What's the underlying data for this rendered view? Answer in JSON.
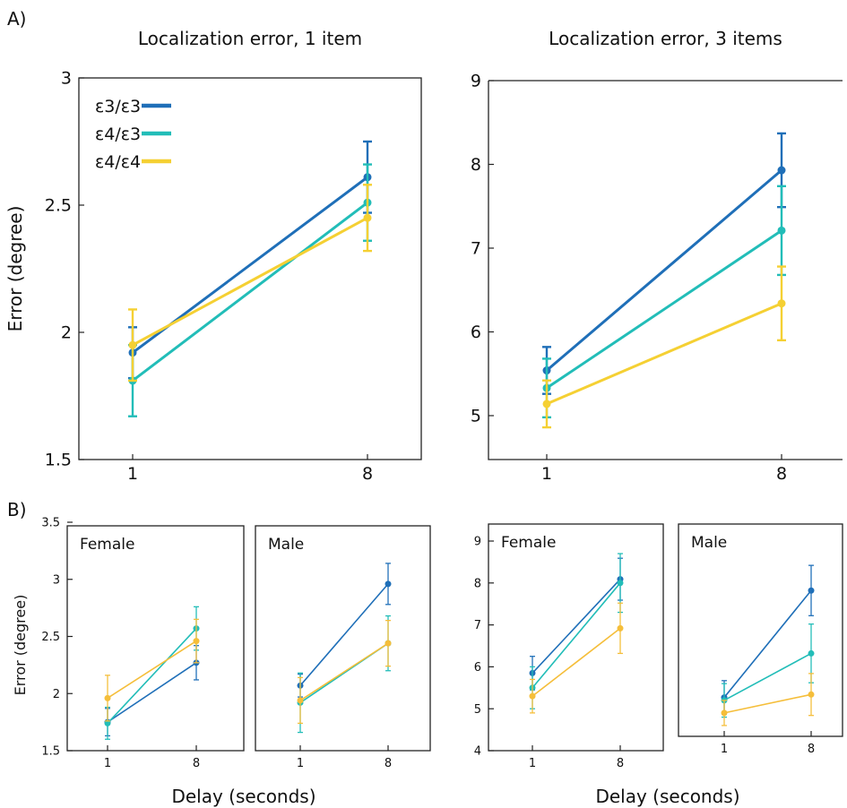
{
  "figure": {
    "panel_a_label": "A)",
    "panel_b_label": "B)",
    "ylabel_a": "Error (degree)",
    "ylabel_b": "Error (degree)",
    "xlabel_left": "Delay (seconds)",
    "xlabel_right": "Delay (seconds)"
  },
  "legend": [
    {
      "label": "ε3/ε3",
      "color": "#1f6fb8"
    },
    {
      "label": "ε4/ε3",
      "color": "#22bdb8"
    },
    {
      "label": "ε4/ε4",
      "color": "#f5d033"
    }
  ],
  "chart_data": [
    {
      "id": "a1",
      "type": "line",
      "title": "Localization error, 1 item",
      "subtitle": "",
      "x": [
        1,
        8
      ],
      "xticks": [
        "1",
        "8"
      ],
      "ylim": [
        1.5,
        3
      ],
      "yticks": [
        1.5,
        2,
        2.5,
        3
      ],
      "ytick_labels": [
        "1.5",
        "2",
        "2.5",
        "3"
      ],
      "legend": "top-left",
      "series": [
        {
          "name": "ε3/ε3",
          "color": "#1f6fb8",
          "values": [
            1.92,
            2.61
          ],
          "err": [
            0.1,
            0.14
          ]
        },
        {
          "name": "ε4/ε3",
          "color": "#22bdb8",
          "values": [
            1.81,
            2.51
          ],
          "err": [
            0.14,
            0.15
          ]
        },
        {
          "name": "ε4/ε4",
          "color": "#f5d033",
          "values": [
            1.95,
            2.45
          ],
          "err": [
            0.14,
            0.13
          ]
        }
      ]
    },
    {
      "id": "a3",
      "type": "line",
      "title": "Localization error, 3 items",
      "subtitle": "",
      "x": [
        1,
        8
      ],
      "xticks": [
        "1",
        "8"
      ],
      "ylim": [
        4.5,
        9
      ],
      "yticks": [
        5,
        6,
        7,
        8,
        9
      ],
      "ytick_labels": [
        "5",
        "6",
        "7",
        "8",
        "9"
      ],
      "series": [
        {
          "name": "ε3/ε3",
          "color": "#1f6fb8",
          "values": [
            5.54,
            7.93
          ],
          "err": [
            0.28,
            0.44
          ]
        },
        {
          "name": "ε4/ε3",
          "color": "#22bdb8",
          "values": [
            5.33,
            7.21
          ],
          "err": [
            0.35,
            0.53
          ]
        },
        {
          "name": "ε4/ε4",
          "color": "#f5d033",
          "values": [
            5.14,
            6.34
          ],
          "err": [
            0.28,
            0.44
          ]
        }
      ]
    },
    {
      "id": "bf1",
      "type": "line",
      "title": "Female",
      "x": [
        1,
        8
      ],
      "xticks": [
        "1",
        "8"
      ],
      "ylim": [
        1.5,
        3.5
      ],
      "yticks": [
        1.5,
        2,
        2.5,
        3,
        3.5
      ],
      "ytick_labels": [
        "1.5",
        "2",
        "2.5",
        "3",
        "3.5"
      ],
      "series": [
        {
          "name": "ε3/ε3",
          "color": "#1f6fb8",
          "values": [
            1.75,
            2.27
          ],
          "err": [
            0.12,
            0.15
          ]
        },
        {
          "name": "ε4/ε3",
          "color": "#22bdb8",
          "values": [
            1.74,
            2.57
          ],
          "err": [
            0.14,
            0.19
          ]
        },
        {
          "name": "ε4/ε4",
          "color": "#f5be3a",
          "values": [
            1.96,
            2.46
          ],
          "err": [
            0.2,
            0.19
          ]
        }
      ]
    },
    {
      "id": "bm1",
      "type": "line",
      "title": "Male",
      "x": [
        1,
        8
      ],
      "xticks": [
        "1",
        "8"
      ],
      "ylim": [
        1.5,
        3.5
      ],
      "series": [
        {
          "name": "ε3/ε3",
          "color": "#1f6fb8",
          "values": [
            2.07,
            2.96
          ],
          "err": [
            0.1,
            0.18
          ]
        },
        {
          "name": "ε4/ε3",
          "color": "#22bdb8",
          "values": [
            1.92,
            2.44
          ],
          "err": [
            0.26,
            0.24
          ]
        },
        {
          "name": "ε4/ε4",
          "color": "#f5be3a",
          "values": [
            1.94,
            2.44
          ],
          "err": [
            0.2,
            0.2
          ]
        }
      ]
    },
    {
      "id": "bf3",
      "type": "line",
      "title": "Female",
      "x": [
        1,
        8
      ],
      "xticks": [
        "1",
        "8"
      ],
      "ylim": [
        4,
        9.5
      ],
      "yticks": [
        4,
        5,
        6,
        7,
        8,
        9
      ],
      "ytick_labels": [
        "4",
        "5",
        "6",
        "7",
        "8",
        "9"
      ],
      "series": [
        {
          "name": "ε3/ε3",
          "color": "#1f6fb8",
          "values": [
            5.85,
            8.09
          ],
          "err": [
            0.4,
            0.5
          ]
        },
        {
          "name": "ε4/ε3",
          "color": "#22bdb8",
          "values": [
            5.5,
            8.0
          ],
          "err": [
            0.5,
            0.7
          ]
        },
        {
          "name": "ε4/ε4",
          "color": "#f5be3a",
          "values": [
            5.3,
            6.92
          ],
          "err": [
            0.4,
            0.6
          ]
        }
      ]
    },
    {
      "id": "bm3",
      "type": "line",
      "title": "Male",
      "x": [
        1,
        8
      ],
      "xticks": [
        "1",
        "8"
      ],
      "ylim": [
        4,
        9.5
      ],
      "series": [
        {
          "name": "ε3/ε3",
          "color": "#1f6fb8",
          "values": [
            5.27,
            7.82
          ],
          "err": [
            0.4,
            0.6
          ]
        },
        {
          "name": "ε4/ε3",
          "color": "#22bdb8",
          "values": [
            5.2,
            6.32
          ],
          "err": [
            0.4,
            0.7
          ]
        },
        {
          "name": "ε4/ε4",
          "color": "#f5be3a",
          "values": [
            4.9,
            5.34
          ],
          "err": [
            0.3,
            0.5
          ]
        }
      ]
    }
  ]
}
